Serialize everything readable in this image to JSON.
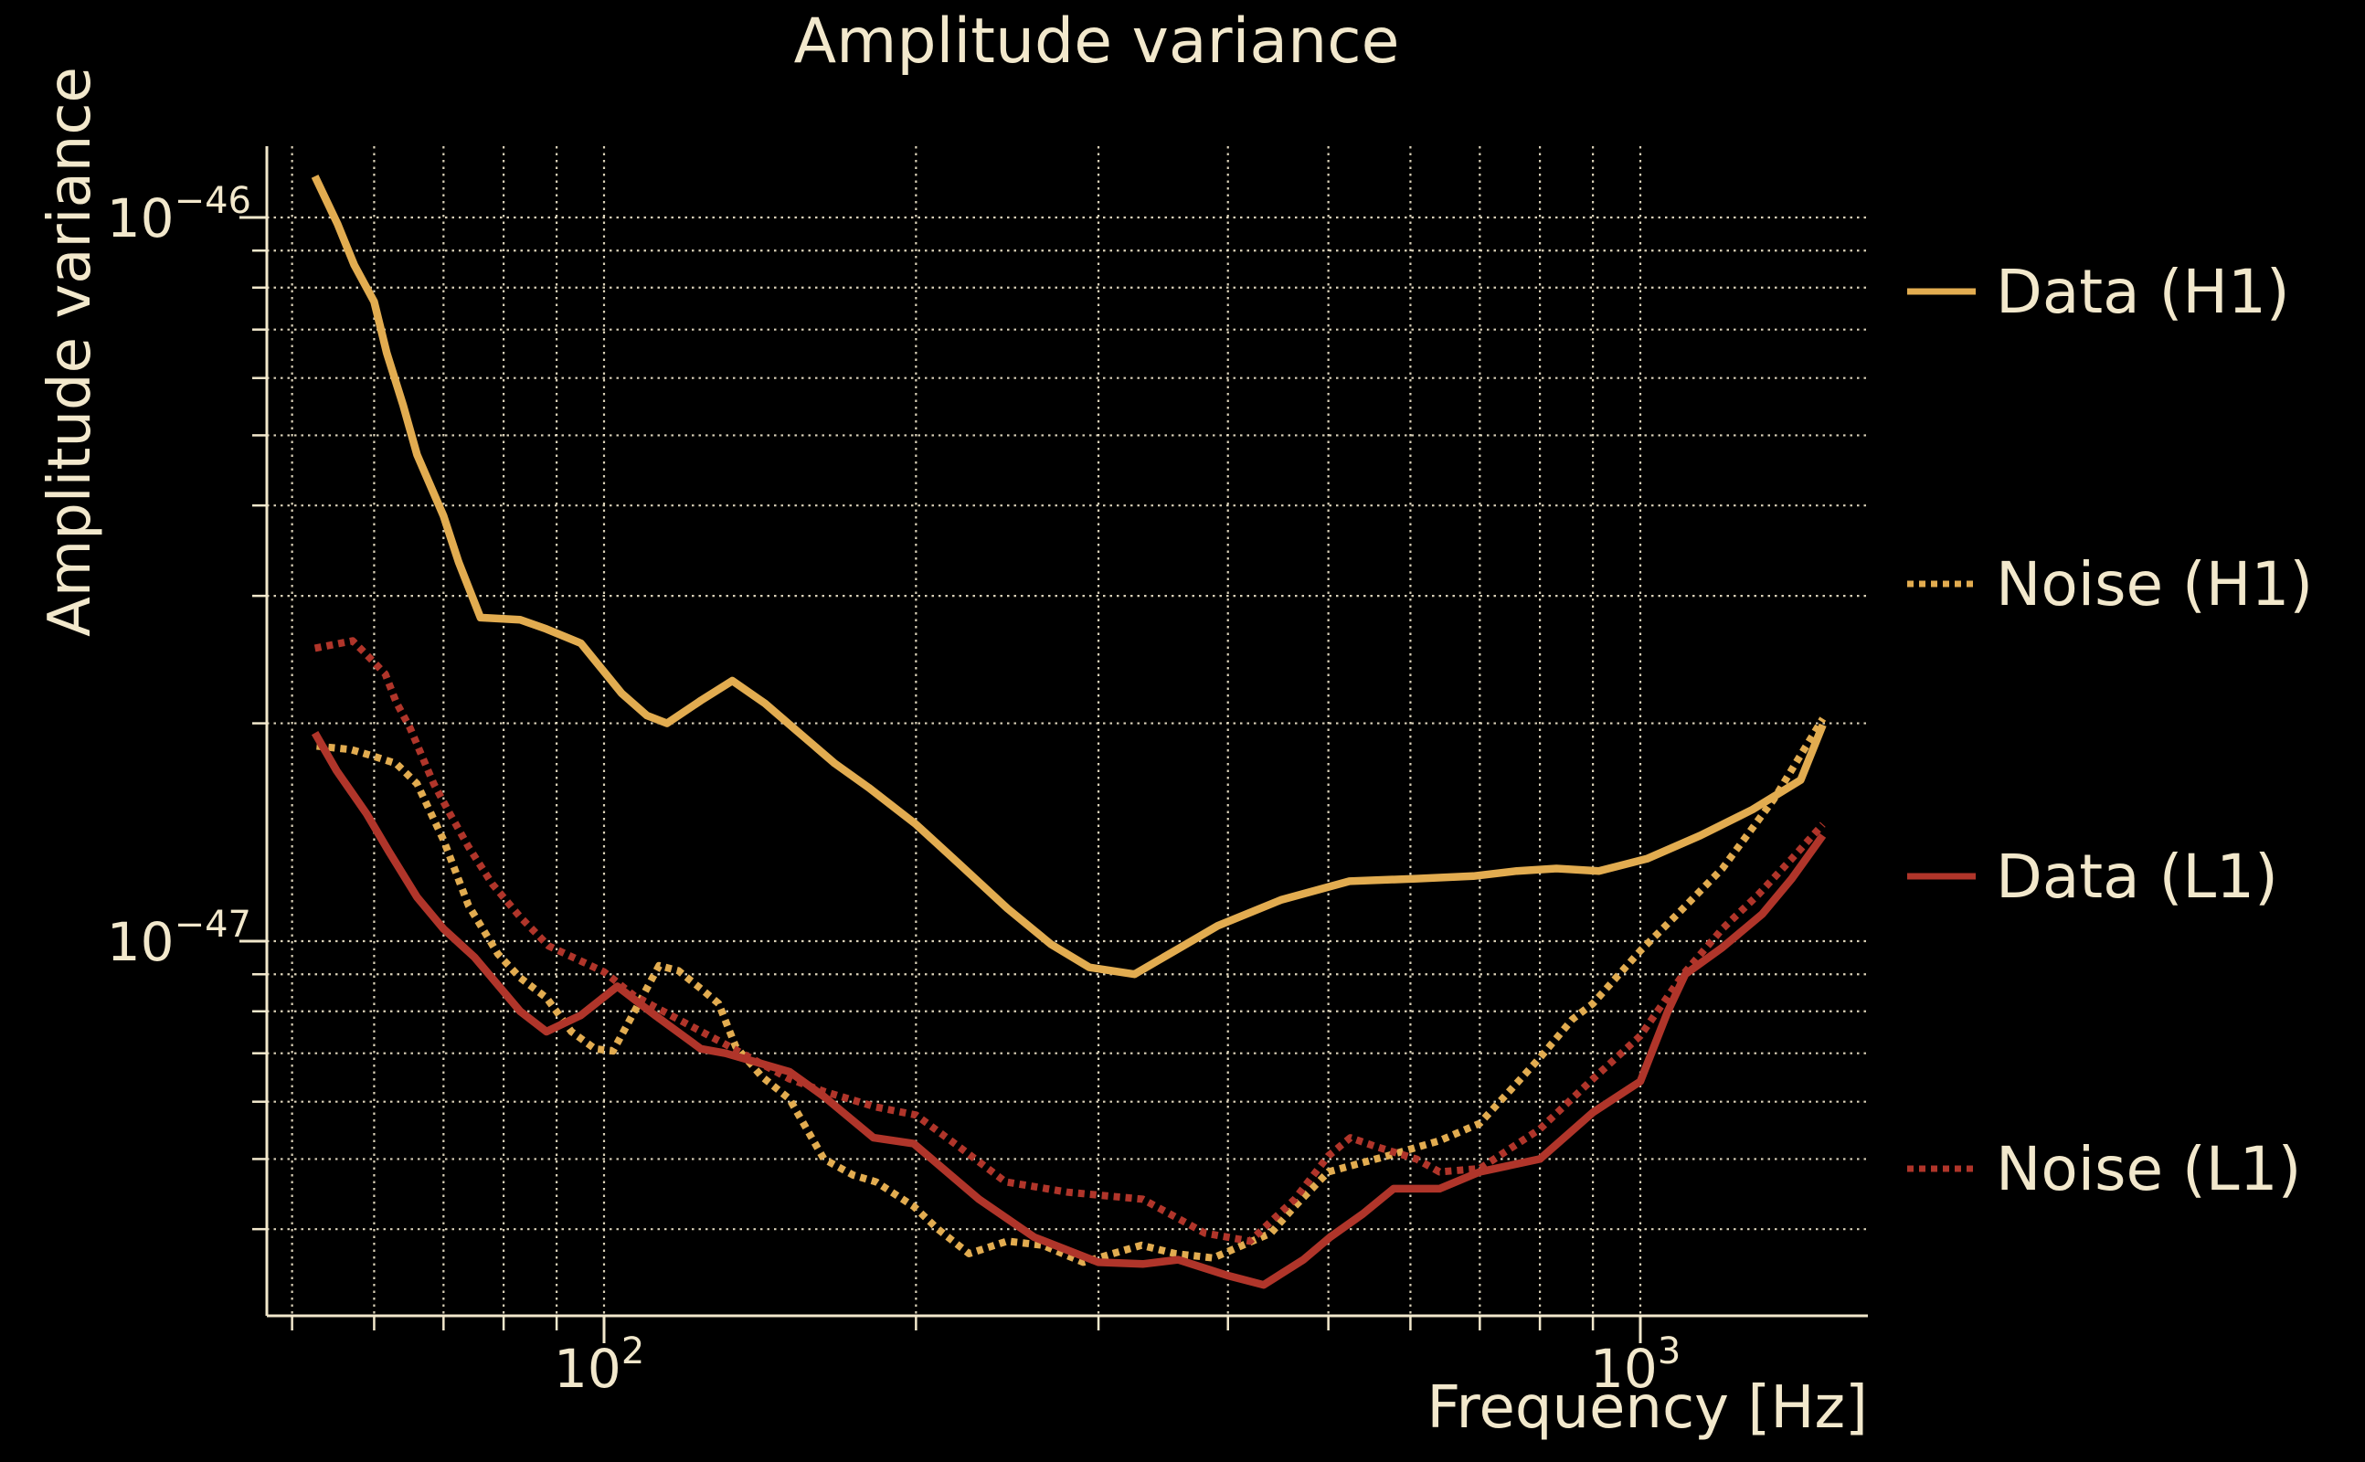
{
  "chart_data": {
    "type": "line",
    "title": "Amplitude variance",
    "xlabel": "Frequency [Hz]",
    "ylabel": "Amplitude variance",
    "x_scale": "log",
    "y_scale": "log",
    "xlim": [
      47.2,
      1660
    ],
    "ylim": [
      3e-48,
      1.26e-46
    ],
    "grid": "dotted major+minor",
    "legend_position": "right-outside",
    "colors": {
      "background": "#000000",
      "foreground": "#F2E8CC",
      "h1": "#E2AC50",
      "l1": "#B0352A"
    },
    "x_ticks_major": [
      {
        "value": 100,
        "base": "10",
        "exp": "2"
      },
      {
        "value": 1000,
        "base": "10",
        "exp": "3"
      }
    ],
    "y_ticks_major": [
      {
        "value": 1e-46,
        "base": "10",
        "exp": "−46"
      },
      {
        "value": 1e-47,
        "base": "10",
        "exp": "−47"
      }
    ],
    "x_ticks_minor": [
      50,
      60,
      70,
      80,
      90,
      200,
      300,
      400,
      500,
      600,
      700,
      800,
      900,
      1000
    ],
    "y_ticks_minor": [
      9e-47,
      8e-47,
      7e-47,
      6e-47,
      5e-47,
      4e-47,
      3e-47,
      2e-47,
      9e-48,
      8e-48,
      7e-48,
      6e-48,
      5e-48,
      4e-48
    ],
    "series": [
      {
        "name": "Data (H1)",
        "color": "#E2AC50",
        "dash": "solid",
        "points": [
          [
            52.6,
            1.14e-46
          ],
          [
            55.3,
            9.8e-47
          ],
          [
            57.4,
            8.6e-47
          ],
          [
            60,
            7.65e-47
          ],
          [
            61.7,
            6.5e-47
          ],
          [
            64,
            5.5e-47
          ],
          [
            66,
            4.7e-47
          ],
          [
            70,
            3.87e-47
          ],
          [
            72.4,
            3.34e-47
          ],
          [
            76,
            2.8e-47
          ],
          [
            83,
            2.78e-47
          ],
          [
            88,
            2.7e-47
          ],
          [
            95,
            2.58e-47
          ],
          [
            104,
            2.2e-47
          ],
          [
            110,
            2.05e-47
          ],
          [
            115,
            2e-47
          ],
          [
            124,
            2.15e-47
          ],
          [
            133,
            2.29e-47
          ],
          [
            143,
            2.13e-47
          ],
          [
            153,
            1.96e-47
          ],
          [
            167,
            1.76e-47
          ],
          [
            180,
            1.63e-47
          ],
          [
            200,
            1.45e-47
          ],
          [
            220,
            1.28e-47
          ],
          [
            245,
            1.11e-47
          ],
          [
            270,
            9.9e-48
          ],
          [
            294,
            9.2e-48
          ],
          [
            325,
            9e-48
          ],
          [
            360,
            9.8e-48
          ],
          [
            391,
            1.05e-47
          ],
          [
            450,
            1.14e-47
          ],
          [
            524,
            1.21e-47
          ],
          [
            608,
            1.22e-47
          ],
          [
            690,
            1.23e-47
          ],
          [
            760,
            1.25e-47
          ],
          [
            830,
            1.26e-47
          ],
          [
            912,
            1.25e-47
          ],
          [
            1015,
            1.3e-47
          ],
          [
            1143,
            1.4e-47
          ],
          [
            1283,
            1.52e-47
          ],
          [
            1428,
            1.67e-47
          ],
          [
            1500,
            1.99e-47
          ]
        ]
      },
      {
        "name": "Noise (H1)",
        "color": "#E2AC50",
        "dash": "dotted",
        "points": [
          [
            52.8,
            1.86e-47
          ],
          [
            57,
            1.84e-47
          ],
          [
            60,
            1.8e-47
          ],
          [
            63,
            1.76e-47
          ],
          [
            66,
            1.65e-47
          ],
          [
            70,
            1.38e-47
          ],
          [
            74,
            1.12e-47
          ],
          [
            79,
            9.6e-48
          ],
          [
            83,
            8.9e-48
          ],
          [
            88,
            8.35e-48
          ],
          [
            93,
            7.5e-48
          ],
          [
            98,
            7.1e-48
          ],
          [
            102,
            7.05e-48
          ],
          [
            108,
            8.2e-48
          ],
          [
            113,
            9.25e-48
          ],
          [
            118,
            9.1e-48
          ],
          [
            124,
            8.6e-48
          ],
          [
            129,
            8.2e-48
          ],
          [
            134,
            7.15e-48
          ],
          [
            142,
            6.5e-48
          ],
          [
            151,
            6.05e-48
          ],
          [
            163,
            5e-48
          ],
          [
            174,
            4.75e-48
          ],
          [
            183,
            4.65e-48
          ],
          [
            199,
            4.3e-48
          ],
          [
            210,
            4e-48
          ],
          [
            225,
            3.7e-48
          ],
          [
            245,
            3.85e-48
          ],
          [
            265,
            3.8e-48
          ],
          [
            290,
            3.6e-48
          ],
          [
            330,
            3.8e-48
          ],
          [
            356,
            3.7e-48
          ],
          [
            387,
            3.65e-48
          ],
          [
            440,
            3.95e-48
          ],
          [
            464,
            4.3e-48
          ],
          [
            500,
            4.8e-48
          ],
          [
            570,
            5.05e-48
          ],
          [
            640,
            5.3e-48
          ],
          [
            700,
            5.6e-48
          ],
          [
            755,
            6.3e-48
          ],
          [
            800,
            6.9e-48
          ],
          [
            860,
            7.8e-48
          ],
          [
            900,
            8.2e-48
          ],
          [
            1000,
            9.7e-48
          ],
          [
            1086,
            1.09e-47
          ],
          [
            1200,
            1.26e-47
          ],
          [
            1345,
            1.57e-47
          ],
          [
            1500,
            2.03e-47
          ]
        ]
      },
      {
        "name": "Data (L1)",
        "color": "#B0352A",
        "dash": "solid",
        "points": [
          [
            52.6,
            1.94e-47
          ],
          [
            55.2,
            1.72e-47
          ],
          [
            59,
            1.5e-47
          ],
          [
            62,
            1.33e-47
          ],
          [
            66,
            1.15e-47
          ],
          [
            70,
            1.04e-47
          ],
          [
            75,
            9.5e-48
          ],
          [
            83,
            8e-48
          ],
          [
            88,
            7.5e-48
          ],
          [
            95,
            7.9e-48
          ],
          [
            103,
            8.66e-48
          ],
          [
            112,
            7.9e-48
          ],
          [
            124,
            7.1e-48
          ],
          [
            131,
            7e-48
          ],
          [
            151,
            6.6e-48
          ],
          [
            163,
            6.1e-48
          ],
          [
            182,
            5.35e-48
          ],
          [
            199,
            5.25e-48
          ],
          [
            230,
            4.4e-48
          ],
          [
            260,
            3.9e-48
          ],
          [
            300,
            3.6e-48
          ],
          [
            331,
            3.58e-48
          ],
          [
            358,
            3.63e-48
          ],
          [
            400,
            3.45e-48
          ],
          [
            433,
            3.35e-48
          ],
          [
            473,
            3.63e-48
          ],
          [
            502,
            3.9e-48
          ],
          [
            540,
            4.2e-48
          ],
          [
            578,
            4.55e-48
          ],
          [
            640,
            4.55e-48
          ],
          [
            700,
            4.8e-48
          ],
          [
            800,
            5e-48
          ],
          [
            900,
            5.8e-48
          ],
          [
            1000,
            6.4e-48
          ],
          [
            1063,
            8e-48
          ],
          [
            1105,
            9e-48
          ],
          [
            1200,
            9.8e-48
          ],
          [
            1311,
            1.09e-47
          ],
          [
            1400,
            1.22e-47
          ],
          [
            1500,
            1.4e-47
          ]
        ]
      },
      {
        "name": "Noise (L1)",
        "color": "#B0352A",
        "dash": "dotted",
        "points": [
          [
            52.6,
            2.54e-47
          ],
          [
            57.2,
            2.6e-47
          ],
          [
            58.8,
            2.5e-47
          ],
          [
            61.5,
            2.34e-47
          ],
          [
            63,
            2.14e-47
          ],
          [
            65,
            1.97e-47
          ],
          [
            67.2,
            1.76e-47
          ],
          [
            68.5,
            1.65e-47
          ],
          [
            71,
            1.5e-47
          ],
          [
            74,
            1.35e-47
          ],
          [
            78,
            1.2e-47
          ],
          [
            83,
            1.08e-47
          ],
          [
            88.4,
            9.85e-48
          ],
          [
            100,
            9.07e-48
          ],
          [
            107,
            8.4e-48
          ],
          [
            122,
            7.6e-48
          ],
          [
            131,
            7.2e-48
          ],
          [
            151,
            6.45e-48
          ],
          [
            163,
            6.2e-48
          ],
          [
            183,
            5.9e-48
          ],
          [
            200,
            5.75e-48
          ],
          [
            220,
            5.2e-48
          ],
          [
            244,
            4.65e-48
          ],
          [
            280,
            4.5e-48
          ],
          [
            331,
            4.4e-48
          ],
          [
            380,
            3.95e-48
          ],
          [
            420,
            3.85e-48
          ],
          [
            464,
            4.4e-48
          ],
          [
            500,
            5.05e-48
          ],
          [
            525,
            5.35e-48
          ],
          [
            556,
            5.2e-48
          ],
          [
            608,
            5e-48
          ],
          [
            640,
            4.8e-48
          ],
          [
            700,
            4.85e-48
          ],
          [
            800,
            5.5e-48
          ],
          [
            900,
            6.45e-48
          ],
          [
            1000,
            7.4e-48
          ],
          [
            1100,
            9e-48
          ],
          [
            1200,
            1.04e-47
          ],
          [
            1300,
            1.16e-47
          ],
          [
            1400,
            1.3e-47
          ],
          [
            1500,
            1.45e-47
          ]
        ]
      }
    ],
    "legend": [
      {
        "label": "Data (H1)",
        "color": "#E2AC50",
        "dash": "solid"
      },
      {
        "label": "Noise (H1)",
        "color": "#E2AC50",
        "dash": "dotted"
      },
      {
        "label": "Data (L1)",
        "color": "#B0352A",
        "dash": "solid"
      },
      {
        "label": "Noise (L1)",
        "color": "#B0352A",
        "dash": "dotted"
      }
    ]
  }
}
